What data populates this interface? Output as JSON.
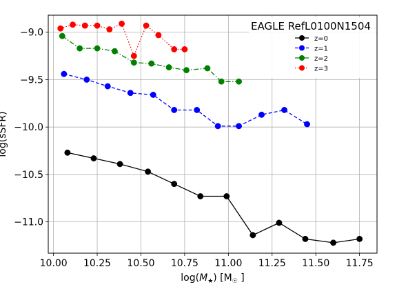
{
  "chart_data": {
    "type": "line",
    "title": "",
    "legend_title": "EAGLE RefL0100N1504",
    "legend_position": "top-right",
    "xlabel": {
      "prefix": "log(",
      "symbol": "M",
      "subscript": "★",
      "suffix": ") [M",
      "unit_subscript": "☉",
      "close": " ]"
    },
    "ylabel": "log(sSFR)",
    "xlim": [
      9.97,
      11.85
    ],
    "ylim": [
      -11.33,
      -8.82
    ],
    "xticks": [
      10.0,
      10.25,
      10.5,
      10.75,
      11.0,
      11.25,
      11.5,
      11.75
    ],
    "xtick_labels": [
      "10.00",
      "10.25",
      "10.50",
      "10.75",
      "11.00",
      "11.25",
      "11.50",
      "11.75"
    ],
    "yticks": [
      -11.0,
      -10.5,
      -10.0,
      -9.5,
      -9.0
    ],
    "ytick_labels": [
      "−11.0",
      "−10.5",
      "−10.0",
      "−9.5",
      "−9.0"
    ],
    "grid": true,
    "series": [
      {
        "name": "z=0",
        "color": "#000000",
        "linestyle": "solid",
        "x": [
          10.08,
          10.23,
          10.38,
          10.54,
          10.69,
          10.84,
          10.99,
          11.14,
          11.29,
          11.44,
          11.6,
          11.75
        ],
        "y": [
          -10.27,
          -10.33,
          -10.39,
          -10.47,
          -10.6,
          -10.73,
          -10.73,
          -11.14,
          -11.01,
          -11.18,
          -11.22,
          -11.18
        ]
      },
      {
        "name": "z=1",
        "color": "#0000ff",
        "linestyle": "dashed",
        "x": [
          10.06,
          10.19,
          10.31,
          10.44,
          10.57,
          10.69,
          10.82,
          10.94,
          11.06,
          11.19,
          11.32,
          11.45
        ],
        "y": [
          -9.44,
          -9.5,
          -9.57,
          -9.64,
          -9.66,
          -9.82,
          -9.82,
          -9.99,
          -9.99,
          -9.87,
          -9.82,
          -9.97
        ]
      },
      {
        "name": "z=2",
        "color": "#008000",
        "linestyle": "dashdot",
        "x": [
          10.05,
          10.15,
          10.25,
          10.35,
          10.46,
          10.56,
          10.66,
          10.76,
          10.88,
          10.96,
          11.06
        ],
        "y": [
          -9.04,
          -9.17,
          -9.17,
          -9.2,
          -9.32,
          -9.33,
          -9.37,
          -9.4,
          -9.38,
          -9.52,
          -9.52
        ]
      },
      {
        "name": "z=3",
        "color": "#ff0000",
        "linestyle": "dotted",
        "x": [
          10.04,
          10.11,
          10.18,
          10.25,
          10.32,
          10.39,
          10.46,
          10.53,
          10.6,
          10.69,
          10.75
        ],
        "y": [
          -8.96,
          -8.92,
          -8.93,
          -8.93,
          -8.97,
          -8.91,
          -9.25,
          -8.93,
          -9.03,
          -9.18,
          -9.18
        ]
      }
    ]
  }
}
